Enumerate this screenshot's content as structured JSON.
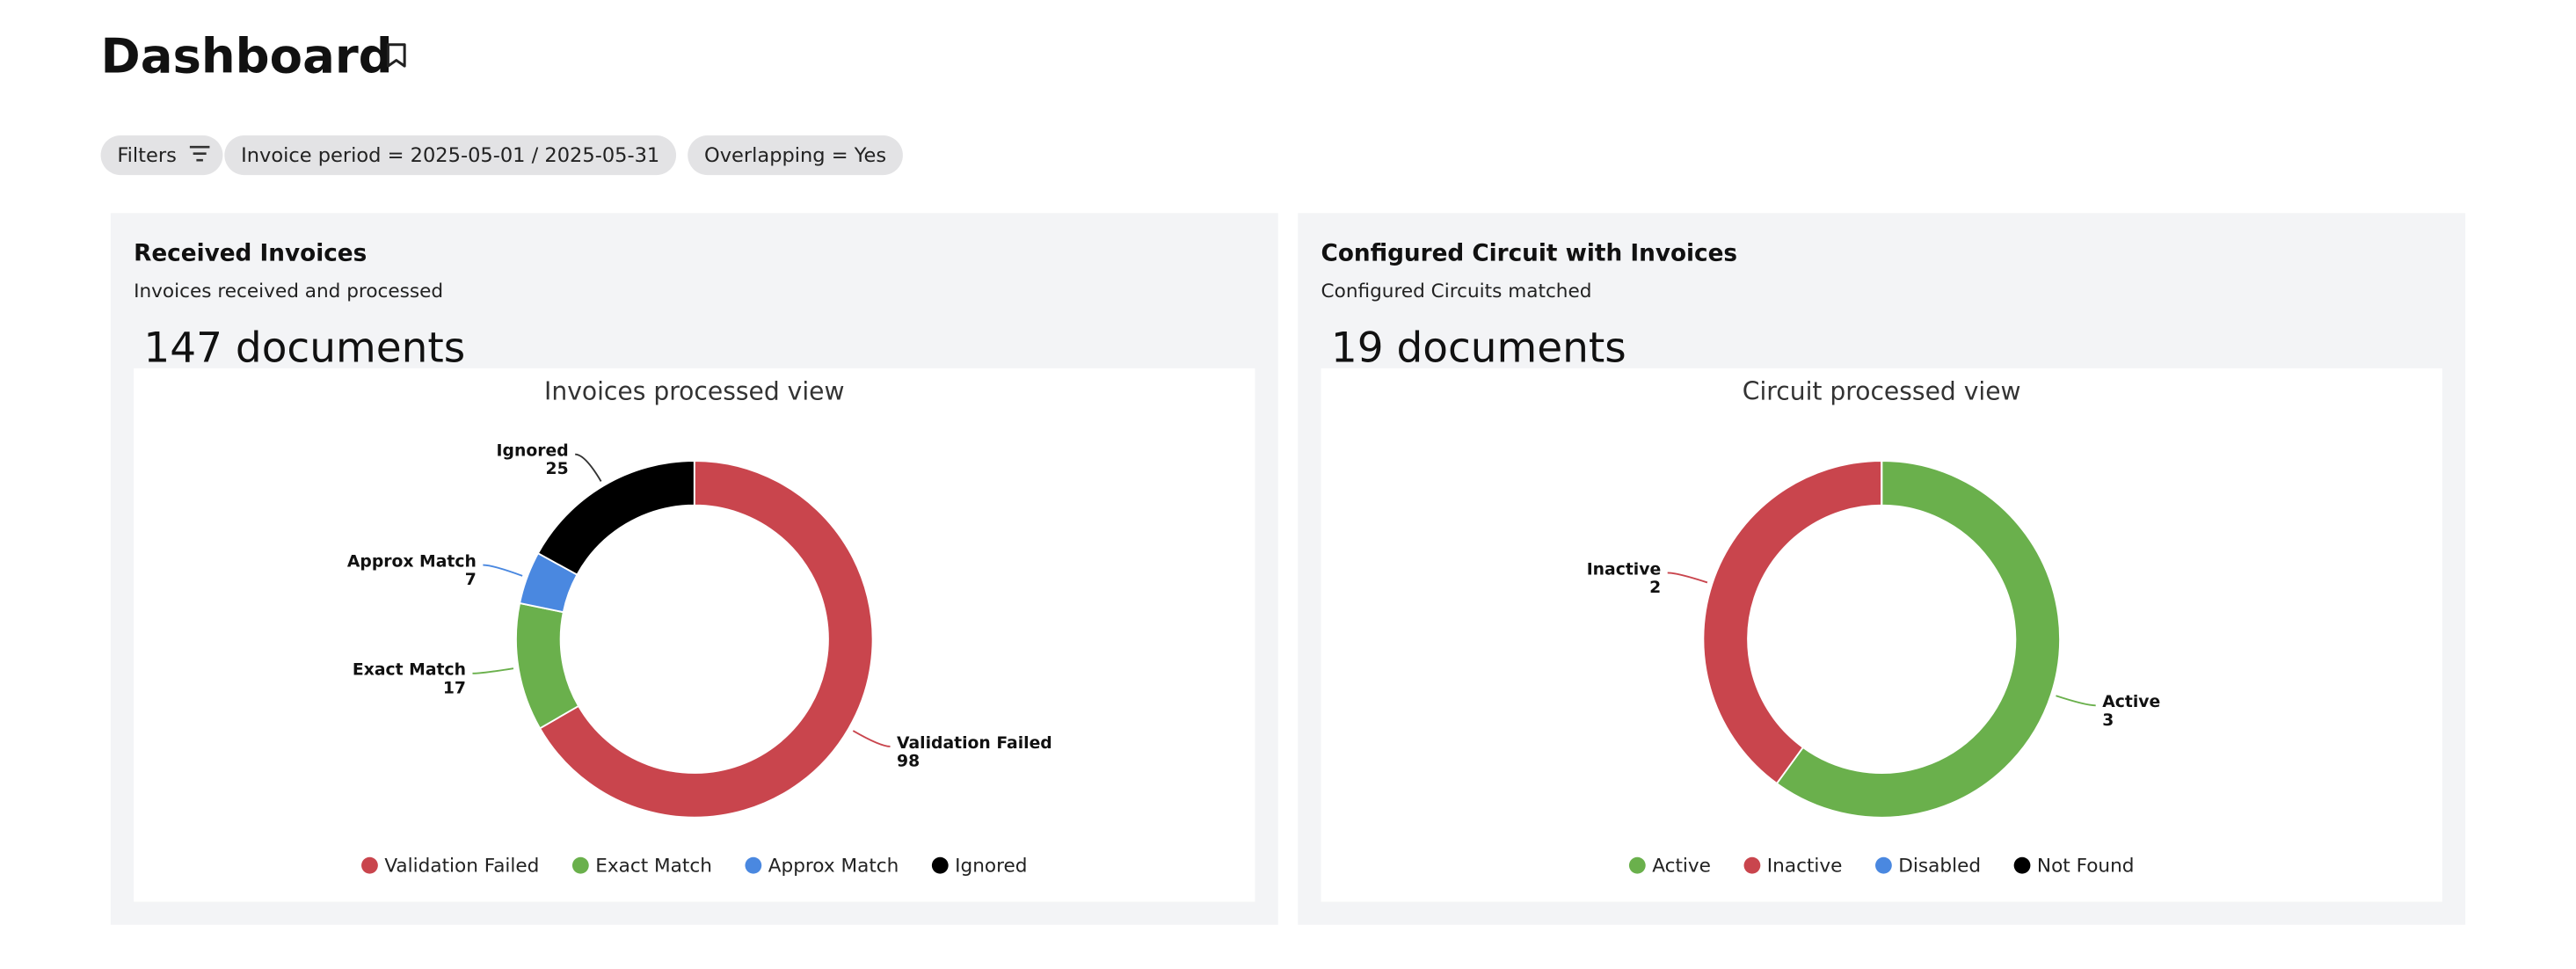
{
  "header": {
    "title": "Dashboard"
  },
  "filters": [
    "Filters",
    "Invoice period = 2025-05-01 / 2025-05-31",
    "Overlapping = Yes"
  ],
  "panels": [
    {
      "title": "Received Invoices",
      "subtitle": "Invoices received and processed",
      "count": "147 documents",
      "chart_data": {
        "type": "donut",
        "title": "Invoices processed view",
        "categories": [
          "Validation Failed",
          "Exact Match",
          "Approx Match",
          "Ignored"
        ],
        "values": [
          98,
          17,
          7,
          25
        ],
        "colors": [
          "#c9454d",
          "#6ab04c",
          "#4a88e0",
          "#000000"
        ]
      }
    },
    {
      "title": "Configured Circuit with Invoices",
      "subtitle": "Configured Circuits matched",
      "count": "19 documents",
      "chart_data": {
        "type": "donut",
        "title": "Circuit processed view",
        "categories": [
          "Active",
          "Inactive",
          "Disabled",
          "Not Found"
        ],
        "values": [
          3,
          2,
          0,
          0
        ],
        "colors": [
          "#6ab04c",
          "#c9454d",
          "#4a88e0",
          "#000000"
        ]
      }
    }
  ]
}
